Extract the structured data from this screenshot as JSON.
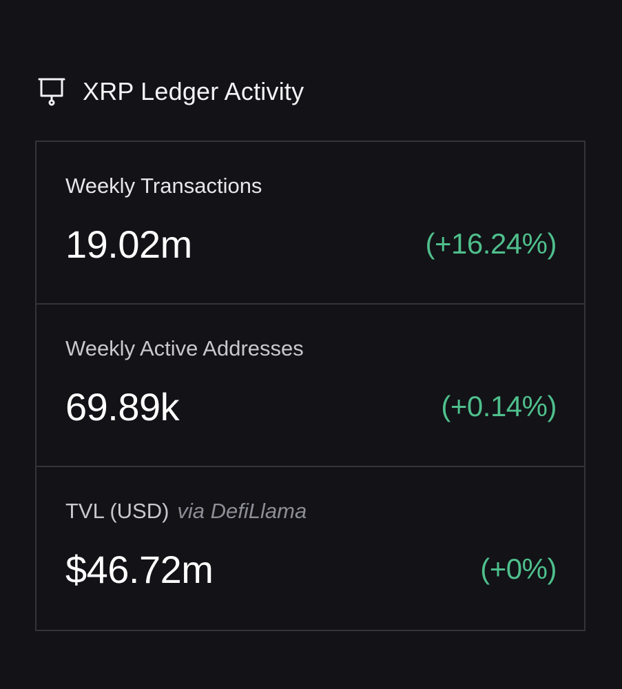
{
  "header": {
    "icon": "presentation-board-icon",
    "title": "XRP Ledger Activity"
  },
  "metrics": [
    {
      "label": "Weekly Transactions",
      "value": "19.02m",
      "change": "(+16.24%)"
    },
    {
      "label": "Weekly Active Addresses",
      "value": "69.89k",
      "change": "(+0.14%)"
    },
    {
      "label": "TVL (USD)",
      "source": "via DefiLlama",
      "value": "$46.72m",
      "change": "(+0%)"
    }
  ],
  "colors": {
    "background": "#121217",
    "border": "#34343b",
    "positive_change": "#4fbf8c",
    "text": "#ffffff"
  }
}
